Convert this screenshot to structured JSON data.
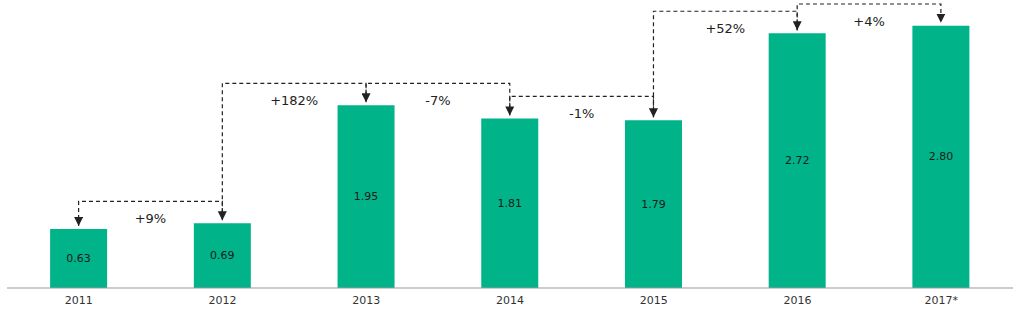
{
  "chart_data": {
    "type": "bar",
    "categories": [
      "2011",
      "2012",
      "2013",
      "2014",
      "2015",
      "2016",
      "2017*"
    ],
    "values": [
      0.63,
      0.69,
      1.95,
      1.81,
      1.79,
      2.72,
      2.8
    ],
    "value_labels": [
      "0.63",
      "0.69",
      "1.95",
      "1.81",
      "1.79",
      "2.72",
      "2.80"
    ],
    "color": "#00b388",
    "ylim": [
      0,
      3
    ],
    "grid": false,
    "data_labels": true,
    "tick_labels": "x",
    "annotations": [
      "+9%",
      "+182%",
      "-7%",
      "-1%",
      "+52%",
      "+4%"
    ]
  }
}
